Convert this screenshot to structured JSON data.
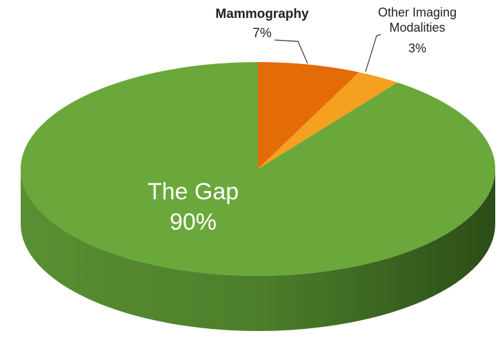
{
  "chart_data": {
    "type": "pie",
    "categories": [
      "Mammography",
      "Other Imaging Modalities",
      "The Gap"
    ],
    "values": [
      7,
      3,
      90
    ],
    "value_labels": [
      "7%",
      "3%",
      "90%"
    ],
    "colors": [
      "#e36c09",
      "#f5a01e",
      "#6ba83b"
    ]
  }
}
